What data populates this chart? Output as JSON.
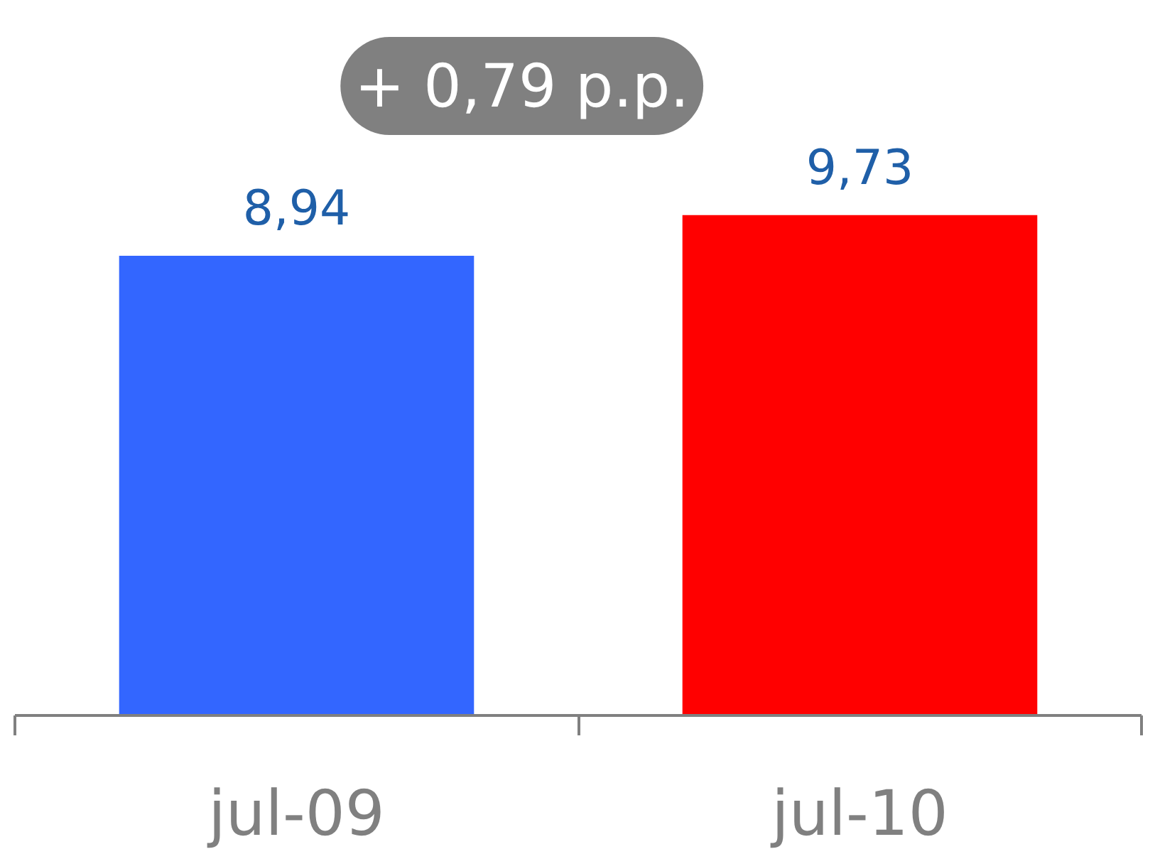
{
  "chart_data": {
    "type": "bar",
    "categories": [
      "jul-09",
      "jul-10"
    ],
    "values": [
      8.94,
      9.73
    ],
    "value_labels": [
      "8,94",
      "9,73"
    ],
    "colors": [
      "#3366ff",
      "#ff0000"
    ],
    "annotations": [
      "+ 0,79 p.p."
    ]
  }
}
